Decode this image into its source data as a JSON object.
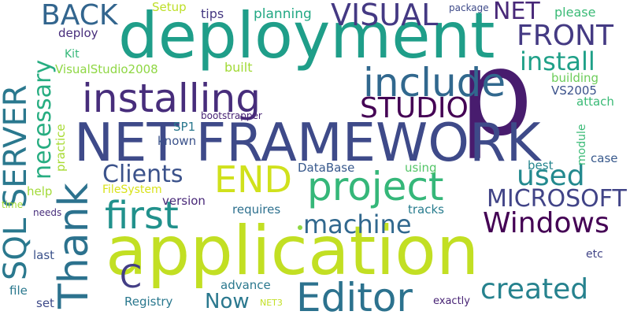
{
  "words": [
    {
      "text": "p",
      "color": "#481c6e"
    },
    {
      "text": "application",
      "color": "#c2df23"
    },
    {
      "text": "deployment",
      "color": "#1f9e89"
    },
    {
      "text": "NET FRAMEWORK",
      "color": "#3e4a89"
    },
    {
      "text": "installing",
      "color": "#472d7b"
    },
    {
      "text": "include",
      "color": "#31688e"
    },
    {
      "text": "project",
      "color": "#35b779"
    },
    {
      "text": "Editor",
      "color": "#2c728e"
    },
    {
      "text": "SQL SERVER",
      "color": "#2a788e"
    },
    {
      "text": "Thank",
      "color": "#2c728e"
    },
    {
      "text": "first",
      "color": "#21918c"
    },
    {
      "text": "END",
      "color": "#d0e11c"
    },
    {
      "text": "created",
      "color": "#26828e"
    },
    {
      "text": "Windows",
      "color": "#440154"
    },
    {
      "text": "used",
      "color": "#23898e"
    },
    {
      "text": "STUDIO",
      "color": "#440154"
    },
    {
      "text": "MICROSOFT",
      "color": "#414487"
    },
    {
      "text": "machine",
      "color": "#31688e"
    },
    {
      "text": "install",
      "color": "#1fa088"
    },
    {
      "text": "VISUAL",
      "color": "#443983"
    },
    {
      "text": "FRONT",
      "color": "#443a83"
    },
    {
      "text": "BACK",
      "color": "#32658e"
    },
    {
      "text": "NET",
      "color": "#482878"
    },
    {
      "text": "Clients",
      "color": "#3b528b"
    },
    {
      "text": "necessary",
      "color": "#27ad81"
    },
    {
      "text": "C",
      "color": "#433e85"
    },
    {
      "text": "Now",
      "color": "#2a788e"
    },
    {
      "text": "VisualStudio2008",
      "color": "#8fd744"
    },
    {
      "text": "building",
      "color": "#6ccd5a"
    },
    {
      "text": "VS2005",
      "color": "#3b528b"
    },
    {
      "text": "attach",
      "color": "#3aba76"
    },
    {
      "text": "built",
      "color": "#a2da37"
    },
    {
      "text": "planning",
      "color": "#22a884"
    },
    {
      "text": "tips",
      "color": "#453882"
    },
    {
      "text": "Setup",
      "color": "#bddf26"
    },
    {
      "text": "deploy",
      "color": "#472d7b"
    },
    {
      "text": "Kit",
      "color": "#35b779"
    },
    {
      "text": "package",
      "color": "#3e4a89"
    },
    {
      "text": "please",
      "color": "#3aba76"
    },
    {
      "text": "SP1",
      "color": "#2a788e"
    },
    {
      "text": "bootstrapper",
      "color": "#482475"
    },
    {
      "text": "known",
      "color": "#3b528b"
    },
    {
      "text": "practice",
      "color": "#a8db34"
    },
    {
      "text": "DataBase",
      "color": "#38598c"
    },
    {
      "text": "using",
      "color": "#54c568"
    },
    {
      "text": "best",
      "color": "#25858e"
    },
    {
      "text": "module",
      "color": "#3aba76"
    },
    {
      "text": "case",
      "color": "#38598c"
    },
    {
      "text": "FileSystem",
      "color": "#d8e219"
    },
    {
      "text": "help",
      "color": "#a2da37"
    },
    {
      "text": "version",
      "color": "#482878"
    },
    {
      "text": "time",
      "color": "#a5db36"
    },
    {
      "text": "needs",
      "color": "#472d7b"
    },
    {
      "text": "requires",
      "color": "#2d708e"
    },
    {
      "text": "tracks",
      "color": "#287c8e"
    },
    {
      "text": "last",
      "color": "#3b528b"
    },
    {
      "text": "etc",
      "color": "#414487"
    },
    {
      "text": "file",
      "color": "#2a788e"
    },
    {
      "text": "set",
      "color": "#3e4a89"
    },
    {
      "text": "advance",
      "color": "#2a788e"
    },
    {
      "text": "Registry",
      "color": "#2a788e"
    },
    {
      "text": "NET3",
      "color": "#c2df23"
    },
    {
      "text": "exactly",
      "color": "#482475"
    }
  ]
}
